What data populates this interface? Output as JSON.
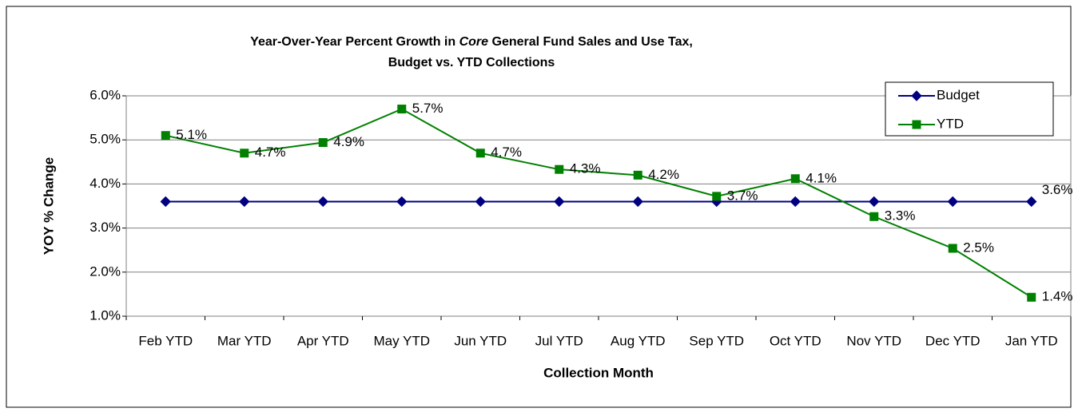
{
  "chart_data": {
    "type": "line",
    "title": [
      [
        "Year-Over-Year Percent Growth in ",
        "Core",
        " General Fund Sales and Use Tax,"
      ],
      [
        "Budget vs. YTD Collections"
      ]
    ],
    "title_italic": [
      [
        false,
        true,
        false
      ],
      [
        false
      ]
    ],
    "x_label": "Collection Month",
    "y_label": "YOY % Change",
    "categories": [
      "Feb YTD",
      "Mar YTD",
      "Apr YTD",
      "May YTD",
      "Jun YTD",
      "Jul YTD",
      "Aug YTD",
      "Sep YTD",
      "Oct YTD",
      "Nov YTD",
      "Dec YTD",
      "Jan YTD"
    ],
    "series": [
      {
        "name": "Budget",
        "color": "#000080",
        "marker": "diamond",
        "values": [
          3.6,
          3.6,
          3.6,
          3.6,
          3.6,
          3.6,
          3.6,
          3.6,
          3.6,
          3.6,
          3.6,
          3.6
        ],
        "value_labels": [
          null,
          null,
          null,
          null,
          null,
          null,
          null,
          null,
          null,
          null,
          null,
          "3.6%"
        ]
      },
      {
        "name": "YTD",
        "color": "#008000",
        "marker": "square",
        "values": [
          5.1,
          4.7,
          4.94,
          5.7,
          4.7,
          4.33,
          4.2,
          3.72,
          4.12,
          3.26,
          2.54,
          1.43
        ],
        "value_labels": [
          "5.1%",
          "4.7%",
          "4.9%",
          "5.7%",
          "4.7%",
          "4.3%",
          "4.2%",
          "3.7%",
          "4.1%",
          "3.3%",
          "2.5%",
          "1.4%"
        ]
      }
    ],
    "ylim": [
      1,
      6
    ],
    "yticks": [
      {
        "value": 1,
        "label": "1.0%"
      },
      {
        "value": 2,
        "label": "2.0%"
      },
      {
        "value": 3,
        "label": "3.0%"
      },
      {
        "value": 4,
        "label": "4.0%"
      },
      {
        "value": 5,
        "label": "5.0%"
      },
      {
        "value": 6,
        "label": "6.0%"
      }
    ],
    "grid": true,
    "legend": "top-right"
  }
}
